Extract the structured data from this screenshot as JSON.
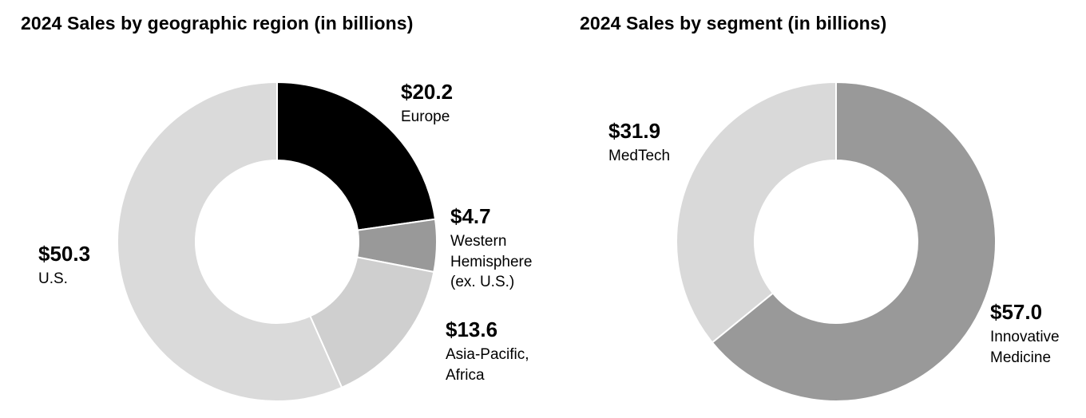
{
  "chart_data": [
    {
      "type": "pie",
      "title": "2024 Sales by geographic region (in billions)",
      "series": [
        {
          "values": [
            20.2,
            4.7,
            13.6,
            50.3
          ],
          "value_labels": [
            "$20.2",
            "$4.7",
            "$13.6",
            "$50.3"
          ],
          "names": [
            "Europe",
            "Western Hemisphere (ex. U.S.)",
            "Asia-Pacific, Africa",
            "U.S."
          ],
          "colors": [
            "#000000",
            "#999999",
            "#cfcfcf",
            "#dadada"
          ]
        }
      ],
      "start": "12 o'clock, clockwise",
      "donut": true
    },
    {
      "type": "pie",
      "title": "2024 Sales by segment (in billions)",
      "series": [
        {
          "values": [
            57.0,
            31.9
          ],
          "value_labels": [
            "$57.0",
            "$31.9"
          ],
          "names": [
            "Innovative Medicine",
            "MedTech"
          ],
          "colors": [
            "#999999",
            "#d9d9d9"
          ]
        }
      ],
      "start": "12 o'clock, clockwise",
      "donut": true
    }
  ]
}
